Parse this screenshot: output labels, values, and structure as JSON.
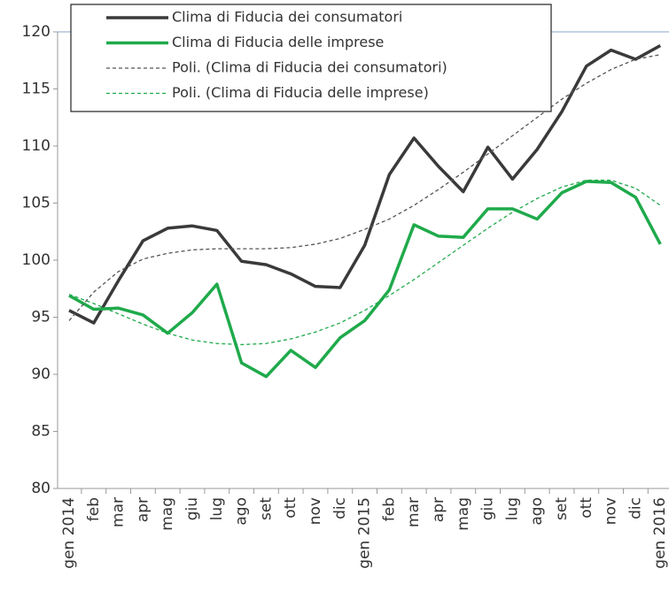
{
  "chart_data": {
    "type": "line",
    "categories": [
      "gen 2014",
      "feb",
      "mar",
      "apr",
      "mag",
      "giu",
      "lug",
      "ago",
      "set",
      "ott",
      "nov",
      "dic",
      "gen 2015",
      "feb",
      "mar",
      "apr",
      "mag",
      "giu",
      "lug",
      "ago",
      "set",
      "ott",
      "nov",
      "dic",
      "gen 2016"
    ],
    "series": [
      {
        "name": "Clima di Fiducia dei consumatori",
        "color": "#3a3a3a",
        "dashed": false,
        "values": [
          95.6,
          94.5,
          98.2,
          101.7,
          102.8,
          103.0,
          102.6,
          99.9,
          99.6,
          98.8,
          97.7,
          97.6,
          101.3,
          107.5,
          110.7,
          108.2,
          106.0,
          109.9,
          107.1,
          109.7,
          113.0,
          117.0,
          118.4,
          117.6,
          118.8
        ]
      },
      {
        "name": "Clima di Fiducia delle imprese",
        "color": "#1faa4b",
        "dashed": false,
        "values": [
          96.9,
          95.7,
          95.8,
          95.2,
          93.6,
          95.4,
          97.9,
          91.0,
          89.8,
          92.1,
          90.6,
          93.2,
          94.7,
          97.4,
          103.1,
          102.1,
          102.0,
          104.5,
          104.5,
          103.6,
          105.9,
          106.9,
          106.8,
          105.5,
          101.4
        ]
      },
      {
        "name": "Poli. (Clima di Fiducia dei consumatori)",
        "color": "#555555",
        "dashed": true,
        "values": [
          94.7,
          97.2,
          99.0,
          100.1,
          100.6,
          100.9,
          101.0,
          101.0,
          101.0,
          101.1,
          101.4,
          101.9,
          102.7,
          103.6,
          104.8,
          106.2,
          107.7,
          109.3,
          110.9,
          112.5,
          114.1,
          115.5,
          116.7,
          117.6,
          118.0
        ]
      },
      {
        "name": "Poli. (Clima di Fiducia delle imprese)",
        "color": "#1faa4b",
        "dashed": true,
        "values": [
          97.0,
          96.2,
          95.3,
          94.4,
          93.6,
          93.0,
          92.7,
          92.6,
          92.7,
          93.1,
          93.7,
          94.5,
          95.6,
          96.9,
          98.3,
          99.8,
          101.3,
          102.8,
          104.2,
          105.4,
          106.4,
          107.0,
          107.0,
          106.3,
          104.8
        ]
      }
    ],
    "ylim": [
      80,
      120
    ],
    "yticks": [
      80,
      85,
      90,
      95,
      100,
      105,
      110,
      115,
      120
    ],
    "legend": "top-left"
  }
}
